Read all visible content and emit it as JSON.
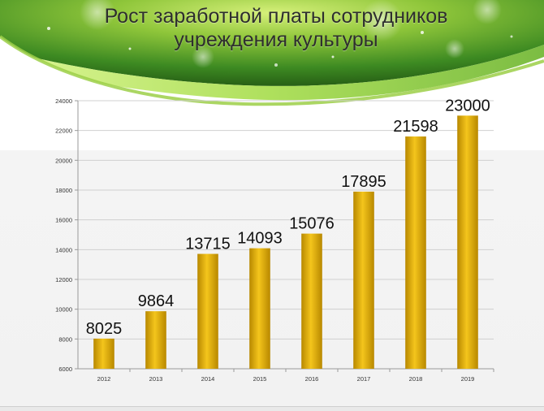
{
  "slide": {
    "title_line1": "Рост заработной платы сотрудников",
    "title_line2": "учреждения культуры"
  },
  "colors": {
    "bar_light": "#f4c51c",
    "bar_dark": "#b88800",
    "header_green_dark": "#2f6e1a",
    "header_green_light": "#b8e05a",
    "grid": "#d0d0d0"
  },
  "chart_data": {
    "type": "bar",
    "categories": [
      "2012",
      "2013",
      "2014",
      "2015",
      "2016",
      "2017",
      "2018",
      "2019"
    ],
    "values": [
      8025,
      9864,
      13715,
      14093,
      15076,
      17895,
      21598,
      23000
    ],
    "ylim": [
      6000,
      24000
    ],
    "yticks": [
      "6000",
      "8000",
      "10000",
      "12000",
      "14000",
      "16000",
      "18000",
      "20000",
      "22000",
      "24000"
    ],
    "grid": true,
    "legend": "none",
    "data_labels": true
  }
}
